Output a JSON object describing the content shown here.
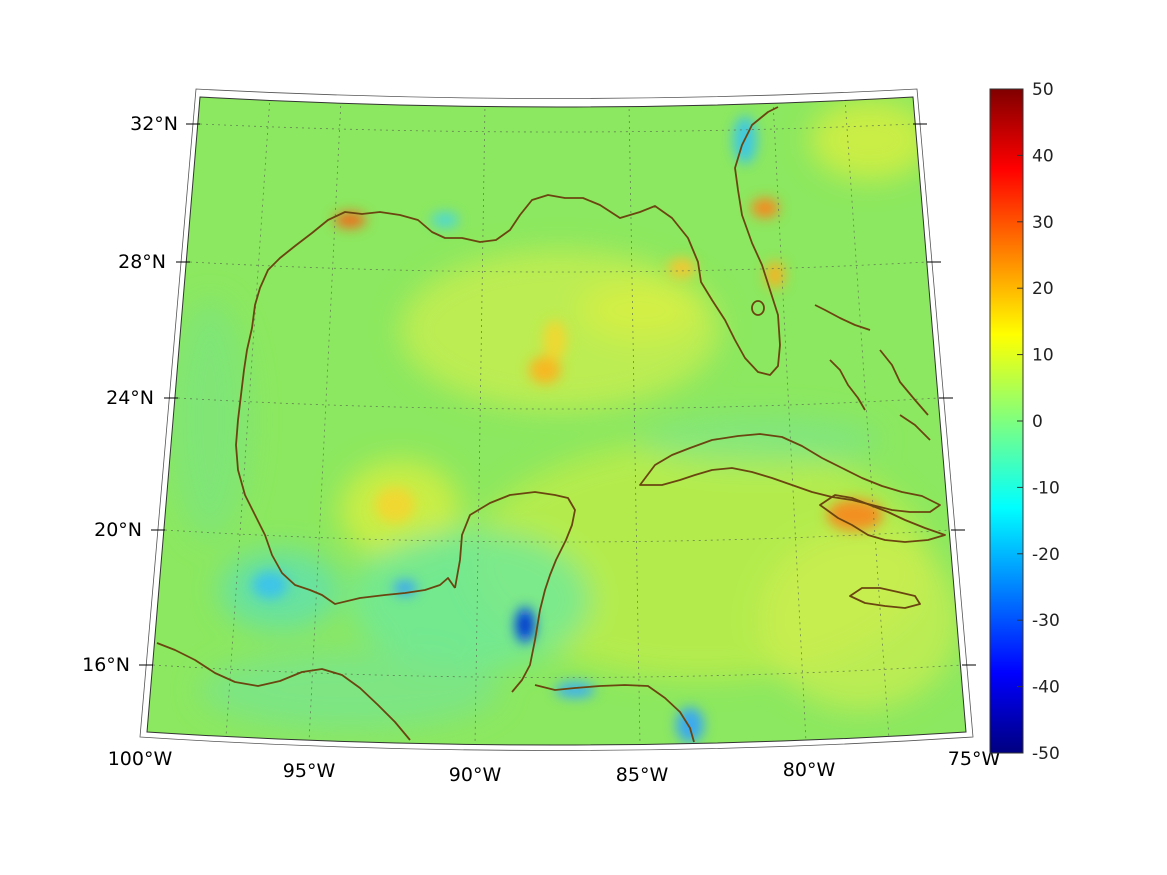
{
  "map": {
    "lat_labels": [
      "32°N",
      "28°N",
      "24°N",
      "20°N",
      "16°N"
    ],
    "lon_labels": [
      "100°W",
      "95°W",
      "90°W",
      "85°W",
      "80°W",
      "75°W"
    ],
    "projection": "conic",
    "extent": {
      "lon": [
        -100,
        -75
      ],
      "lat": [
        14,
        33
      ]
    },
    "grid": true,
    "coastline_color": "#6b4510",
    "background_color": "#8ce860"
  },
  "colorbar": {
    "tick_labels": [
      "50",
      "40",
      "30",
      "20",
      "10",
      "0",
      "-10",
      "-20",
      "-30",
      "-40",
      "-50"
    ],
    "range": [
      -50,
      50
    ],
    "colormap": "jet"
  },
  "chart_data": {
    "type": "heatmap",
    "title": "",
    "xlabel": "",
    "ylabel": "",
    "x_range": [
      -100,
      -75
    ],
    "y_range": [
      14,
      33
    ],
    "value_range": [
      -50,
      50
    ],
    "anomalies": [
      {
        "lon": -93.8,
        "lat": 29.6,
        "value": 22
      },
      {
        "lon": -81.3,
        "lat": 29.4,
        "value": 20
      },
      {
        "lon": -77.6,
        "lat": 20.3,
        "value": 20
      },
      {
        "lon": -88.2,
        "lat": 25.2,
        "value": 15
      },
      {
        "lon": -88.4,
        "lat": 17.5,
        "value": -38
      },
      {
        "lon": -83.3,
        "lat": 15.0,
        "value": -18
      },
      {
        "lon": -97.0,
        "lat": 18.5,
        "value": -12
      },
      {
        "lon": -92.5,
        "lat": 20.5,
        "value": 12
      }
    ]
  }
}
